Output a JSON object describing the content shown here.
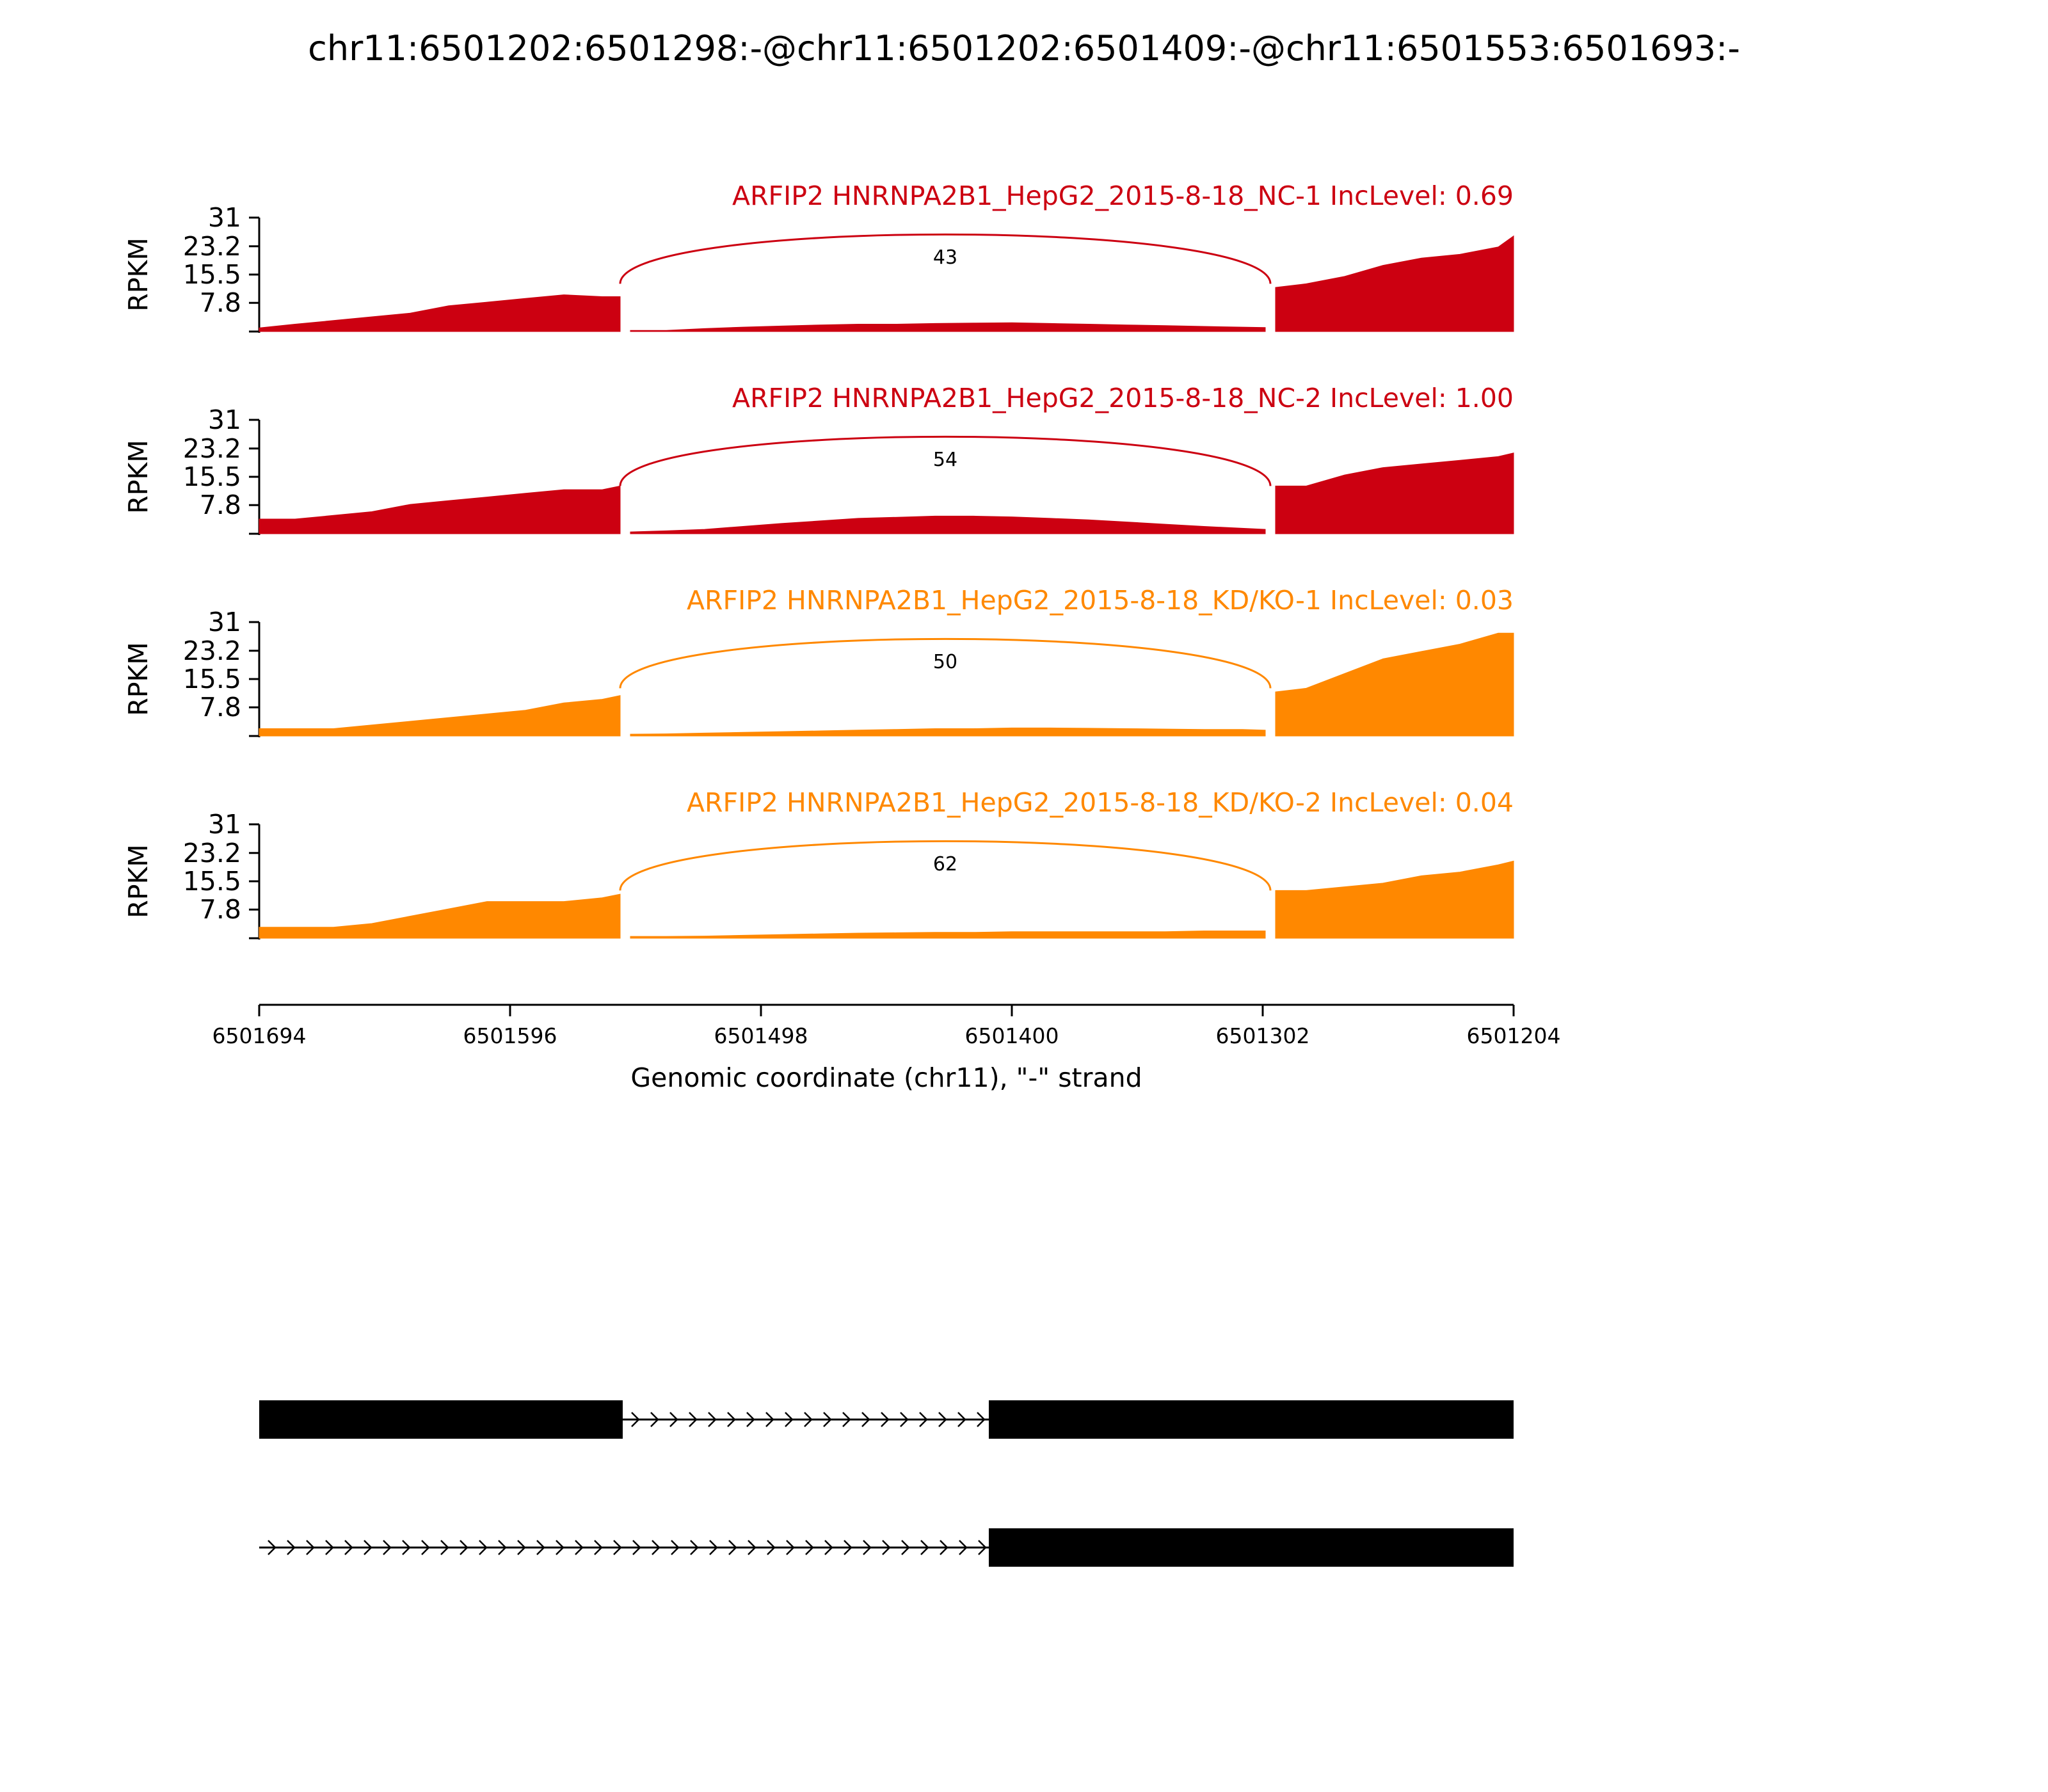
{
  "chart_data": {
    "type": "area",
    "title": "chr11:6501202:6501298:-@chr11:6501202:6501409:-@chr11:6501553:6501693:-",
    "ylabel": "RPKM",
    "yticks": [
      "31",
      "23.2",
      "15.5",
      "7.8"
    ],
    "ytick_values": [
      31,
      23.2,
      15.5,
      7.8
    ],
    "ylim": [
      0,
      31
    ],
    "xlabel": "Genomic coordinate (chr11), \"-\" strand",
    "xlim": [
      6501694,
      6501204
    ],
    "xticks": [
      "6501694",
      "6501596",
      "6501498",
      "6501400",
      "6501302",
      "6501204"
    ],
    "xtick_values": [
      6501694,
      6501596,
      6501498,
      6501400,
      6501302,
      6501204
    ],
    "junction_coords": [
      6501553,
      6501299
    ],
    "tracks": [
      {
        "label": "ARFIP2 HNRNPA2B1_HepG2_2015-8-18_NC-1 IncLevel: 0.69",
        "color": "#cc0011",
        "junction_count": "43",
        "coverage": {
          "x": [
            6501694,
            6501680,
            6501665,
            6501650,
            6501635,
            6501620,
            6501605,
            6501590,
            6501575,
            6501560,
            6501553,
            6501549,
            6501535,
            6501520,
            6501505,
            6501490,
            6501475,
            6501460,
            6501445,
            6501430,
            6501415,
            6501400,
            6501385,
            6501370,
            6501355,
            6501340,
            6501325,
            6501310,
            6501301,
            6501297,
            6501285,
            6501270,
            6501255,
            6501240,
            6501225,
            6501210,
            6501204
          ],
          "y": [
            1,
            2,
            3,
            4,
            5,
            7,
            8,
            9,
            10,
            9.5,
            9.5,
            0.3,
            0.3,
            0.8,
            1.2,
            1.5,
            1.8,
            2.0,
            2.0,
            2.2,
            2.3,
            2.4,
            2.2,
            2.0,
            1.8,
            1.6,
            1.4,
            1.2,
            1.1,
            12,
            13,
            15,
            18,
            20,
            21,
            23,
            26
          ]
        }
      },
      {
        "label": "ARFIP2 HNRNPA2B1_HepG2_2015-8-18_NC-2 IncLevel: 1.00",
        "color": "#cc0011",
        "junction_count": "54",
        "coverage": {
          "x": [
            6501694,
            6501680,
            6501665,
            6501650,
            6501635,
            6501620,
            6501605,
            6501590,
            6501575,
            6501560,
            6501553,
            6501549,
            6501535,
            6501520,
            6501505,
            6501490,
            6501475,
            6501460,
            6501445,
            6501430,
            6501415,
            6501400,
            6501385,
            6501370,
            6501355,
            6501340,
            6501325,
            6501310,
            6501301,
            6501297,
            6501285,
            6501270,
            6501255,
            6501240,
            6501225,
            6501210,
            6501204
          ],
          "y": [
            4,
            4,
            5,
            6,
            8,
            9,
            10,
            11,
            12,
            12,
            13,
            0.5,
            0.8,
            1.2,
            2.0,
            2.8,
            3.5,
            4.2,
            4.5,
            4.8,
            4.8,
            4.6,
            4.2,
            3.8,
            3.2,
            2.6,
            2.0,
            1.5,
            1.2,
            13,
            13,
            16,
            18,
            19,
            20,
            21,
            22
          ]
        }
      },
      {
        "label": "ARFIP2 HNRNPA2B1_HepG2_2015-8-18_KD/KO-1 IncLevel: 0.03",
        "color": "#ff8800",
        "junction_count": "50",
        "coverage": {
          "x": [
            6501694,
            6501680,
            6501665,
            6501650,
            6501635,
            6501620,
            6501605,
            6501590,
            6501575,
            6501560,
            6501553,
            6501549,
            6501535,
            6501520,
            6501505,
            6501490,
            6501475,
            6501460,
            6501445,
            6501430,
            6501415,
            6501400,
            6501385,
            6501370,
            6501355,
            6501340,
            6501325,
            6501310,
            6501301,
            6501297,
            6501285,
            6501270,
            6501255,
            6501240,
            6501225,
            6501210,
            6501204
          ],
          "y": [
            2,
            2,
            2,
            3,
            4,
            5,
            6,
            7,
            9,
            10,
            11,
            0.5,
            0.6,
            0.8,
            1.0,
            1.2,
            1.4,
            1.6,
            1.8,
            2.0,
            2.0,
            2.2,
            2.2,
            2.1,
            2.0,
            1.9,
            1.8,
            1.8,
            1.6,
            12,
            13,
            17,
            21,
            23,
            25,
            28,
            28
          ]
        }
      },
      {
        "label": "ARFIP2 HNRNPA2B1_HepG2_2015-8-18_KD/KO-2 IncLevel: 0.04",
        "color": "#ff8800",
        "junction_count": "62",
        "coverage": {
          "x": [
            6501694,
            6501680,
            6501665,
            6501650,
            6501635,
            6501620,
            6501605,
            6501590,
            6501575,
            6501560,
            6501553,
            6501549,
            6501535,
            6501520,
            6501505,
            6501490,
            6501475,
            6501460,
            6501445,
            6501430,
            6501415,
            6501400,
            6501385,
            6501370,
            6501355,
            6501340,
            6501325,
            6501310,
            6501301,
            6501297,
            6501285,
            6501270,
            6501255,
            6501240,
            6501225,
            6501210,
            6501204
          ],
          "y": [
            3,
            3,
            3,
            4,
            6,
            8,
            10,
            10,
            10,
            11,
            12,
            0.5,
            0.5,
            0.6,
            0.8,
            1.0,
            1.2,
            1.4,
            1.5,
            1.6,
            1.6,
            1.8,
            1.8,
            1.8,
            1.8,
            1.8,
            2.0,
            2.0,
            2.0,
            13,
            13,
            14,
            15,
            17,
            18,
            20,
            21
          ]
        }
      }
    ],
    "isoforms": [
      {
        "exons": [
          [
            6501694,
            6501552
          ],
          [
            6501409,
            6501204
          ]
        ],
        "introns": [
          [
            6501552,
            6501409
          ]
        ]
      },
      {
        "exons": [
          [
            6501409,
            6501204
          ]
        ],
        "introns": [
          [
            6501694,
            6501409
          ]
        ]
      }
    ]
  }
}
